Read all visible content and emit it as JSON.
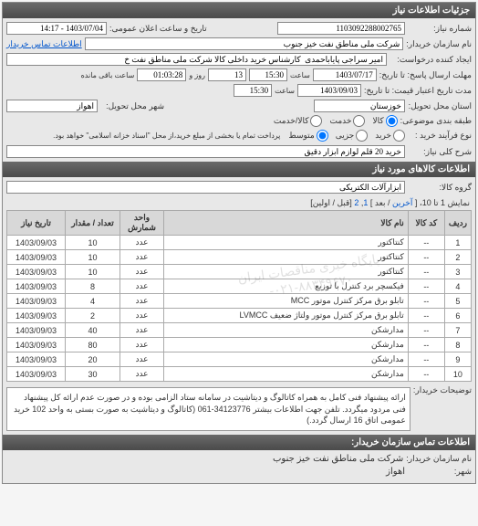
{
  "main_header": "جزئیات اطلاعات نیاز",
  "top": {
    "label_niaz_no": "شماره نیاز:",
    "niaz_no": "1103092288002765",
    "label_public_date": "تاریخ و ساعت اعلان عمومی:",
    "public_date": "1403/07/04 - 14:17"
  },
  "buyer": {
    "label": "نام سازمان خریدار:",
    "name": "شرکت ملی مناطق نفت خیز جنوب",
    "contact_link": "اطلاعات تماس خریدار"
  },
  "requester": {
    "label": "ایجاد کننده درخواست:",
    "text": "امیر سراجی پایاباحمدی  کارشناس خرید داخلی کالا شرکت ملی مناطق نفت خ"
  },
  "deadlines": {
    "reply_label": "مهلت ارسال پاسخ: تا تاریخ:",
    "reply_date": "1403/07/17",
    "reply_saat_lbl": "ساعت",
    "reply_time": "15:30",
    "days_lbl": "13",
    "roz_lbl": "روز و",
    "remain_lbl": "ساعت باقی مانده",
    "remain_time": "01:03:28",
    "valid_label": "مدت تاریخ اعتبار قیمت: تا تاریخ:",
    "valid_date": "1403/09/03",
    "valid_time": "15:30"
  },
  "address": {
    "ostan_lbl": "استان محل تحویل:",
    "ostan_val": "خوزستان",
    "city_lbl": "شهر محل تحویل:",
    "city_val": "اهواز"
  },
  "budget": {
    "label": "طبقه بندی موضوعی:",
    "opts": {
      "kala": "کالا",
      "khadam": "خدمت",
      "both": "کالا/خدمت"
    },
    "picked": "kala"
  },
  "process": {
    "label": "نوع فرآیند خرید :",
    "opts": {
      "kh": "خرید",
      "j": "جزیی",
      "m": "متوسط"
    },
    "picked": "m",
    "note": "پرداخت تمام یا بخشی از مبلغ خرید،از محل \"اسناد خزانه اسلامی\" خواهد بود."
  },
  "general_desc": {
    "label": "شرح کلی نیاز:",
    "value": "خرید 20 قلم لوازم ابزار دقیق"
  },
  "items_header": "اطلاعات کالاهای مورد نیاز",
  "group": {
    "label": "گروه کالا:",
    "value": "ابزارآلات الکتریکی"
  },
  "pager": {
    "text": "نمایش 1 تا 10، [",
    "prev": "آخرین",
    "sep": "/ بعد",
    "pg1": "1",
    "pg2": "2",
    "close": "[قبل / اولین]"
  },
  "columns": {
    "row": "ردیف",
    "code": "کد کالا",
    "name": "نام کالا",
    "unit": "واحد شمارش",
    "qty": "تعداد / مقدار",
    "date": "تاریخ نیاز"
  },
  "rows": [
    {
      "n": 1,
      "code": "--",
      "name": "کنتاکتور",
      "unit": "عدد",
      "qty": "10",
      "date": "1403/09/03"
    },
    {
      "n": 2,
      "code": "--",
      "name": "کنتاکتور",
      "unit": "عدد",
      "qty": "10",
      "date": "1403/09/03"
    },
    {
      "n": 3,
      "code": "--",
      "name": "کنتاکتور",
      "unit": "عدد",
      "qty": "10",
      "date": "1403/09/03"
    },
    {
      "n": 4,
      "code": "--",
      "name": "فیکسچر برد کنترل با توزیع",
      "unit": "عدد",
      "qty": "8",
      "date": "1403/09/03"
    },
    {
      "n": 5,
      "code": "--",
      "name": "تابلو برق مرکز کنترل موتور MCC",
      "unit": "عدد",
      "qty": "4",
      "date": "1403/09/03"
    },
    {
      "n": 6,
      "code": "--",
      "name": "تابلو برق مرکز کنترل موتور ولتاژ ضعیف LVMCC",
      "unit": "عدد",
      "qty": "2",
      "date": "1403/09/03"
    },
    {
      "n": 7,
      "code": "--",
      "name": "مدارشکن",
      "unit": "عدد",
      "qty": "40",
      "date": "1403/09/03"
    },
    {
      "n": 8,
      "code": "--",
      "name": "مدارشکن",
      "unit": "عدد",
      "qty": "80",
      "date": "1403/09/03"
    },
    {
      "n": 9,
      "code": "--",
      "name": "مدارشکن",
      "unit": "عدد",
      "qty": "20",
      "date": "1403/09/03"
    },
    {
      "n": 10,
      "code": "--",
      "name": "مدارشکن",
      "unit": "عدد",
      "qty": "30",
      "date": "1403/09/03"
    }
  ],
  "watermark1": "پایگاه خبری مناقصات ایران",
  "watermark2": "۰۲۱-۸۸۳۴۹۶۷۰-",
  "seller_note": {
    "label": "توضیحات خریدار:",
    "text": "ارائه پیشنهاد فنی کامل به همراه کاتالوگ و دیتاشیت در سامانه ستاد الزامی بوده و در صورت عدم ارائه کل پیشنهاد فنی مردود میگردد. تلفن جهت اطلاعات بیشتر 34123776-061 (کاتالوگ و دیتاشیت به صورت بستی به واحد 102 خرید عمومی اتاق 16 ارسال گردد.)"
  },
  "footer": {
    "header": "اطلاعات تماس سازمان خریدار:",
    "org_lbl": "نام سازمان خریدار:",
    "org": "شرکت ملی مناطق نفت خیز جنوب",
    "city_lbl": "شهر:",
    "city": "اهواز"
  }
}
